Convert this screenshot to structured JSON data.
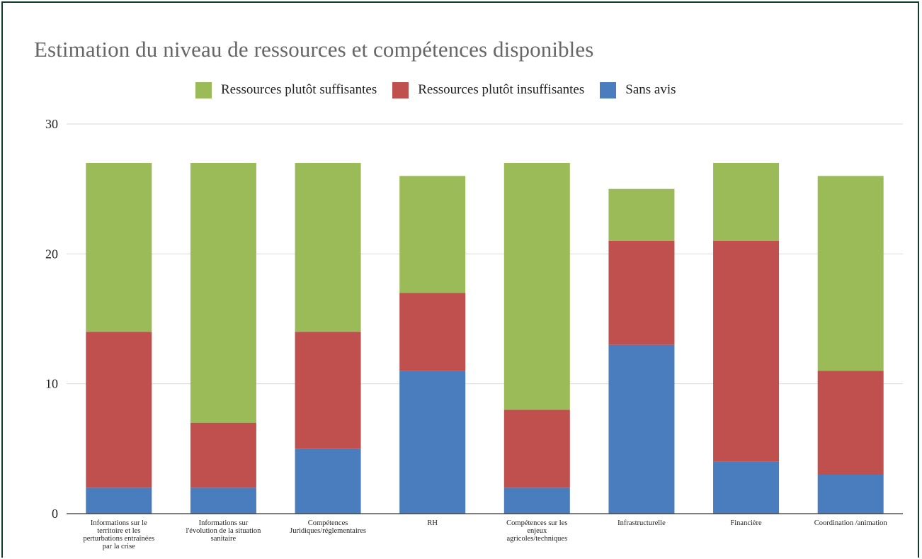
{
  "chart_data": {
    "type": "bar",
    "stacked": true,
    "title": "Estimation du niveau de ressources et compétences disponibles",
    "xlabel": "",
    "ylabel": "",
    "ylim": [
      0,
      30
    ],
    "yticks": [
      0,
      10,
      20,
      30
    ],
    "grid": true,
    "legend_position": "top",
    "categories": [
      [
        "Informations sur le",
        "territoire et les",
        "perturbations entraînées",
        "par la crise"
      ],
      [
        "Informations sur",
        "l'évolution de la situation",
        "sanitaire"
      ],
      [
        "Compétences",
        "Juridiques/réglementaires"
      ],
      [
        "RH"
      ],
      [
        "Compétences sur les",
        "enjeux",
        "agricoles/techniques"
      ],
      [
        "Infrastructurelle"
      ],
      [
        "Financière"
      ],
      [
        "Coordination /animation"
      ]
    ],
    "series": [
      {
        "name": "Sans avis",
        "color": "#4a7dbd",
        "values": [
          2,
          2,
          5,
          11,
          2,
          13,
          4,
          3
        ]
      },
      {
        "name": "Ressources plutôt insuffisantes",
        "color": "#c0504d",
        "values": [
          12,
          5,
          9,
          6,
          6,
          8,
          17,
          8
        ]
      },
      {
        "name": "Ressources plutôt suffisantes",
        "color": "#9bbb59",
        "values": [
          13,
          20,
          13,
          9,
          19,
          4,
          6,
          15
        ]
      }
    ],
    "legend": [
      {
        "name": "Ressources plutôt suffisantes",
        "color": "#9bbb59"
      },
      {
        "name": "Ressources plutôt insuffisantes",
        "color": "#c0504d"
      },
      {
        "name": "Sans avis",
        "color": "#4a7dbd"
      }
    ]
  }
}
